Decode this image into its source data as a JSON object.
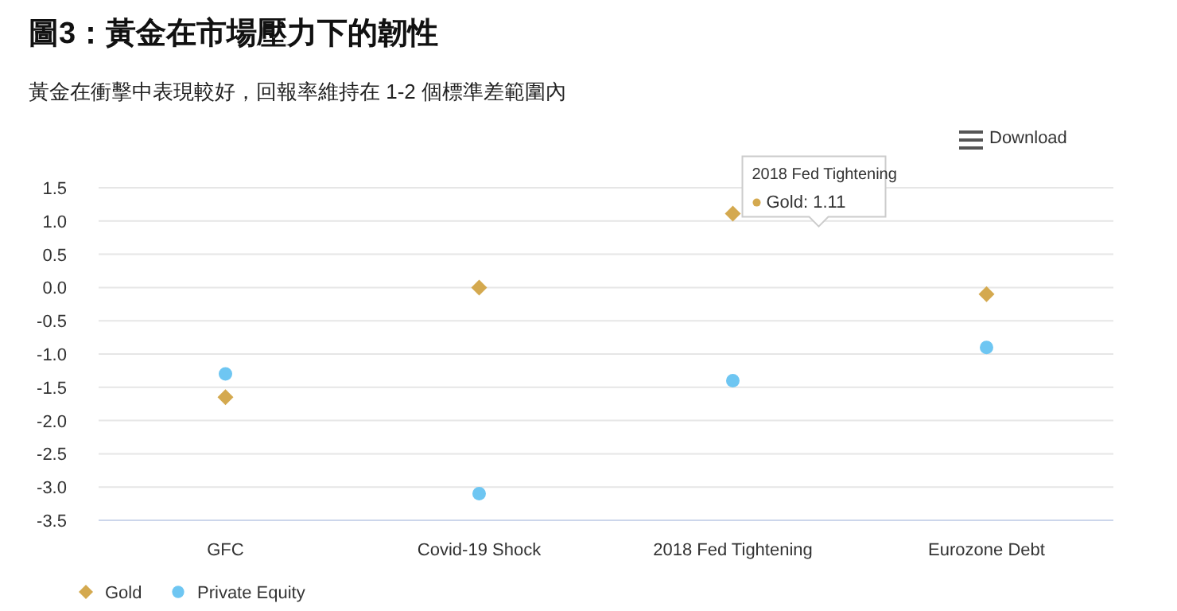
{
  "chart_data": {
    "type": "scatter",
    "title": "圖3：黃金在市場壓力下的韌性",
    "subtitle": "黃金在衝擊中表現較好，回報率維持在 1-2 個標準差範圍內",
    "categories": [
      "GFC",
      "Covid-19 Shock",
      "2018 Fed Tightening",
      "Eurozone Debt"
    ],
    "series": [
      {
        "name": "Gold",
        "color": "#d4a94f",
        "marker": "diamond",
        "values": [
          -1.65,
          0.0,
          1.11,
          -0.1
        ]
      },
      {
        "name": "Private Equity",
        "color": "#6ec6f2",
        "marker": "circle",
        "values": [
          -1.3,
          -3.1,
          -1.4,
          -0.9
        ]
      }
    ],
    "ylim": [
      -3.5,
      1.5
    ],
    "yticks": [
      {
        "value": -3.5,
        "label": "-3.5"
      },
      {
        "value": -3,
        "label": "-3.0"
      },
      {
        "value": -2.5,
        "label": "-2.5"
      },
      {
        "value": -2,
        "label": "-2.0"
      },
      {
        "value": -1.5,
        "label": "-1.5"
      },
      {
        "value": -1,
        "label": "-1.0"
      },
      {
        "value": -0.5,
        "label": "-0.5"
      },
      {
        "value": 0,
        "label": "0.0"
      },
      {
        "value": 0.5,
        "label": "0.5"
      },
      {
        "value": 1,
        "label": "1.0"
      },
      {
        "value": 1.5,
        "label": "1.5"
      }
    ],
    "grid": "y",
    "legend": "bottom left",
    "annotations": [
      "Download",
      {
        "text": "2018 Fed Tightening",
        "x": "2018 Fed Tightening",
        "y": 1.11
      },
      {
        "text": "Gold: 1.11",
        "x": "2018 Fed Tightening",
        "y": 1.11
      }
    ]
  }
}
